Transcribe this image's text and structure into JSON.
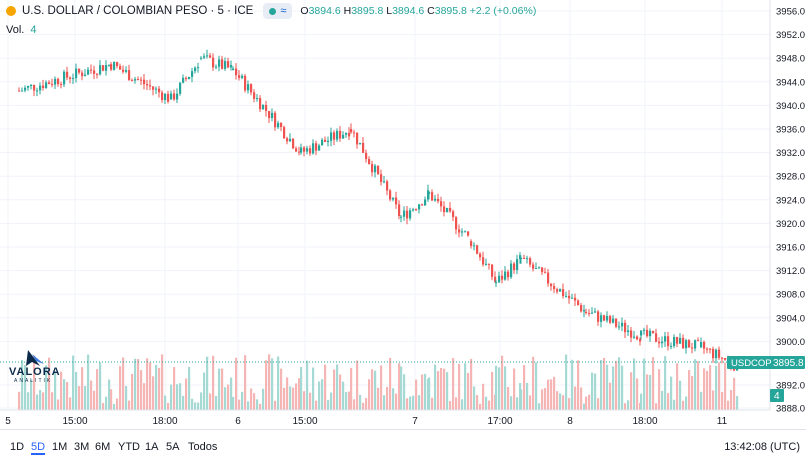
{
  "header": {
    "symbol_title": "U.S. DOLLAR / COLOMBIAN PESO · 5 · ICE",
    "open_label": "O",
    "open": "3894.6",
    "high_label": "H",
    "high": "3895.8",
    "low_label": "L",
    "low": "3894.6",
    "close_label": "C",
    "close": "3895.8",
    "change": "+2.2 (+0.06%)",
    "wave_icon": "≈"
  },
  "volume_legend": {
    "label": "Vol.",
    "value": "4"
  },
  "logo": {
    "name": "VALORA",
    "sub": "ANALITIK"
  },
  "price_axis": {
    "ticks": [
      "3956.0",
      "3952.0",
      "3948.0",
      "3944.0",
      "3940.0",
      "3936.0",
      "3932.0",
      "3928.0",
      "3924.0",
      "3920.0",
      "3916.0",
      "3912.0",
      "3908.0",
      "3904.0",
      "3900.0",
      "3892.0",
      "3888.0"
    ],
    "last_price_label": "USDCOP",
    "last_price": "3895.8",
    "last_volume": "4"
  },
  "time_axis": {
    "ticks": [
      "5",
      "15:00",
      "18:00",
      "6",
      "15:00",
      "7",
      "17:00",
      "8",
      "18:00",
      "11"
    ]
  },
  "range_buttons": [
    "1D",
    "5D",
    "1M",
    "3M",
    "6M",
    "YTD",
    "1A",
    "5A",
    "Todos"
  ],
  "active_range": "5D",
  "clock": "13:42:08 (UTC)",
  "colors": {
    "up": "#26a69a",
    "down": "#ef5350",
    "vol_up": "#a5d9d3",
    "vol_down": "#f5b5b4",
    "grid": "#f0f3fa"
  },
  "chart_data": {
    "type": "candlestick",
    "title": "U.S. DOLLAR / COLOMBIAN PESO · 5 · ICE",
    "x_session_labels": [
      "5",
      "15:00",
      "18:00",
      "6",
      "15:00",
      "7",
      "17:00",
      "8",
      "18:00",
      "11"
    ],
    "ylim": [
      3888,
      3958
    ],
    "y_ticks": [
      3956,
      3952,
      3948,
      3944,
      3940,
      3936,
      3932,
      3928,
      3924,
      3920,
      3916,
      3912,
      3908,
      3904,
      3900,
      3892,
      3888
    ],
    "last_close": 3895.8,
    "close_path_approx": [
      {
        "session": "5 (open)",
        "close": 3942.5
      },
      {
        "session": "5",
        "close": 3947.0
      },
      {
        "session": "5",
        "close": 3941.0
      },
      {
        "session": "5 late",
        "close": 3948.0
      },
      {
        "session": "6 (open)",
        "close": 3946.0
      },
      {
        "session": "6",
        "close": 3932.0
      },
      {
        "session": "6",
        "close": 3936.0
      },
      {
        "session": "6 late",
        "close": 3921.0
      },
      {
        "session": "7 (open)",
        "close": 3925.0
      },
      {
        "session": "7",
        "close": 3917.0
      },
      {
        "session": "7",
        "close": 3910.0
      },
      {
        "session": "7 late",
        "close": 3914.0
      },
      {
        "session": "8",
        "close": 3905.0
      },
      {
        "session": "8",
        "close": 3901.0
      },
      {
        "session": "8 late",
        "close": 3899.0
      },
      {
        "session": "11",
        "close": 3895.8
      }
    ],
    "volume_last": 4
  }
}
